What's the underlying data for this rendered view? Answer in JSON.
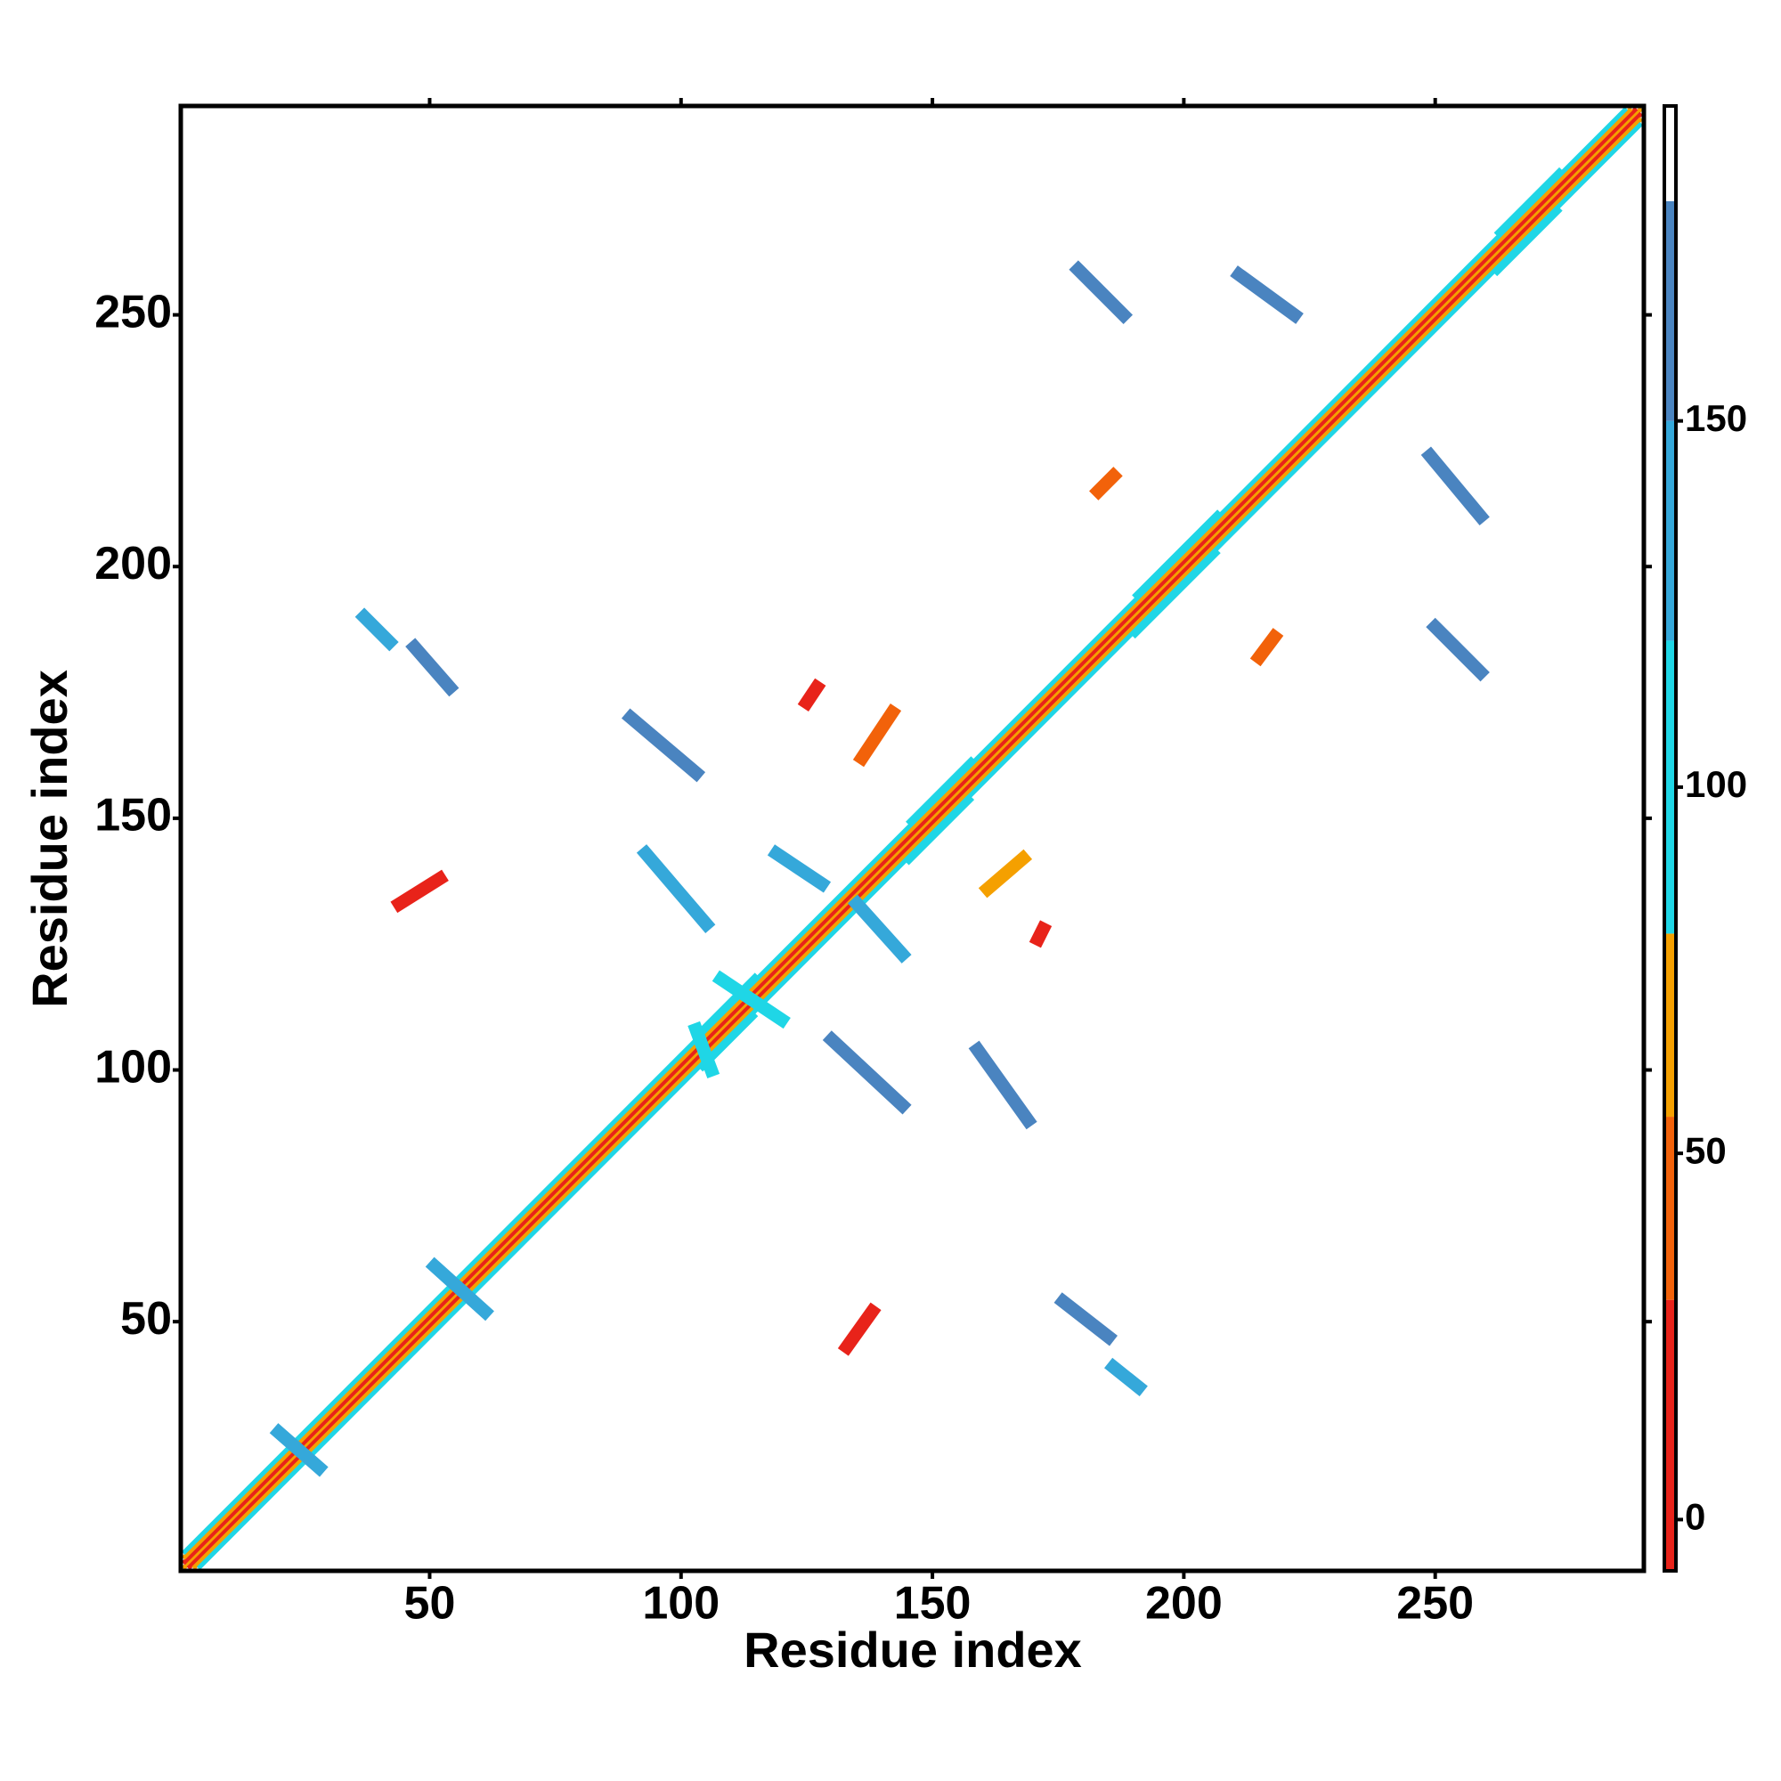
{
  "chart_data": {
    "type": "heatmap",
    "x_label": "Residue index",
    "y_label": "Residue index",
    "xlim": [
      0.5,
      291.5
    ],
    "ylim": [
      0.5,
      291.5
    ],
    "xticks": [
      50,
      100,
      150,
      200,
      250
    ],
    "yticks": [
      50,
      100,
      150,
      200,
      250
    ],
    "colorbar": {
      "lim": [
        -7,
        193
      ],
      "ticks": [
        0,
        50,
        100,
        150
      ],
      "bands": [
        {
          "from": -7,
          "to": 30,
          "color": "#e8231a"
        },
        {
          "from": 30,
          "to": 55,
          "color": "#f2620a"
        },
        {
          "from": 55,
          "to": 80,
          "color": "#f5a000"
        },
        {
          "from": 80,
          "to": 120,
          "color": "#1fd6e6"
        },
        {
          "from": 120,
          "to": 150,
          "color": "#35a8da"
        },
        {
          "from": 150,
          "to": 180,
          "color": "#4a84c0"
        },
        {
          "from": 180,
          "to": 193,
          "color": "#ffffff"
        }
      ]
    },
    "diagonals": [
      {
        "offset": 0,
        "from": 1,
        "to": 291,
        "value": 65
      },
      {
        "offset": 1,
        "from": 1,
        "to": 290,
        "value": 10
      },
      {
        "offset": -1,
        "from": 2,
        "to": 291,
        "value": 10
      },
      {
        "offset": 2,
        "from": 1,
        "to": 289,
        "value": 65
      },
      {
        "offset": -2,
        "from": 3,
        "to": 291,
        "value": 65
      },
      {
        "offset": 3,
        "from": 1,
        "to": 288,
        "value": 100
      },
      {
        "offset": -3,
        "from": 4,
        "to": 291,
        "value": 100
      },
      {
        "offset": 4,
        "from": 190,
        "to": 207,
        "value": 100
      },
      {
        "offset": -4,
        "from": 190,
        "to": 207,
        "value": 100
      },
      {
        "offset": 4,
        "from": 145,
        "to": 158,
        "value": 100
      },
      {
        "offset": -4,
        "from": 145,
        "to": 158,
        "value": 100
      },
      {
        "offset": 4,
        "from": 104,
        "to": 115,
        "value": 100
      },
      {
        "offset": -4,
        "from": 104,
        "to": 115,
        "value": 100
      },
      {
        "offset": 4,
        "from": 262,
        "to": 275,
        "value": 100
      },
      {
        "offset": -4,
        "from": 262,
        "to": 275,
        "value": 100
      }
    ],
    "streaks": [
      {
        "x0": 179,
        "y0": 259,
        "x1": 188,
        "y1": 250,
        "value": 165
      },
      {
        "x0": 211,
        "y0": 258,
        "x1": 222,
        "y1": 250,
        "value": 165
      },
      {
        "x0": 249,
        "y0": 222,
        "x1": 259,
        "y1": 210,
        "value": 165
      },
      {
        "x0": 250,
        "y0": 188,
        "x1": 259,
        "y1": 179,
        "value": 165
      },
      {
        "x0": 37,
        "y0": 190,
        "x1": 42,
        "y1": 185,
        "value": 135
      },
      {
        "x0": 47,
        "y0": 184,
        "x1": 54,
        "y1": 176,
        "value": 165
      },
      {
        "x0": 90,
        "y0": 170,
        "x1": 103,
        "y1": 159,
        "value": 165
      },
      {
        "x0": 93,
        "y0": 143,
        "x1": 105,
        "y1": 129,
        "value": 135
      },
      {
        "x0": 119,
        "y0": 143,
        "x1": 128,
        "y1": 137,
        "value": 135
      },
      {
        "x0": 135,
        "y0": 133,
        "x1": 144,
        "y1": 123,
        "value": 135
      },
      {
        "x0": 130,
        "y0": 106,
        "x1": 144,
        "y1": 93,
        "value": 165
      },
      {
        "x0": 159,
        "y0": 104,
        "x1": 169,
        "y1": 90,
        "value": 165
      },
      {
        "x0": 176,
        "y0": 54,
        "x1": 185,
        "y1": 47,
        "value": 165
      },
      {
        "x0": 186,
        "y0": 41,
        "x1": 191,
        "y1": 37,
        "value": 135
      },
      {
        "x0": 51,
        "y0": 61,
        "x1": 61,
        "y1": 52,
        "value": 135
      },
      {
        "x0": 20,
        "y0": 28,
        "x1": 28,
        "y1": 21,
        "value": 135
      },
      {
        "x0": 44,
        "y0": 133,
        "x1": 52,
        "y1": 138,
        "value": 10
      },
      {
        "x0": 133,
        "y0": 45,
        "x1": 138,
        "y1": 52,
        "value": 10
      },
      {
        "x0": 125,
        "y0": 173,
        "x1": 127,
        "y1": 176,
        "value": 10
      },
      {
        "x0": 171,
        "y0": 126,
        "x1": 172,
        "y1": 128,
        "value": 10
      },
      {
        "x0": 136,
        "y0": 162,
        "x1": 142,
        "y1": 171,
        "value": 45
      },
      {
        "x0": 161,
        "y0": 136,
        "x1": 168,
        "y1": 142,
        "value": 65
      },
      {
        "x0": 215,
        "y0": 182,
        "x1": 218,
        "y1": 186,
        "value": 45
      },
      {
        "x0": 183,
        "y0": 215,
        "x1": 186,
        "y1": 218,
        "value": 45
      },
      {
        "x0": 108,
        "y0": 118,
        "x1": 120,
        "y1": 110,
        "value": 100
      },
      {
        "x0": 103,
        "y0": 108,
        "x1": 106,
        "y1": 100,
        "value": 100
      }
    ]
  }
}
